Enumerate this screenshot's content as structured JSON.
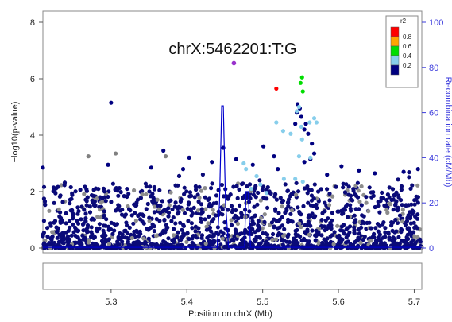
{
  "chart_data": {
    "type": "scatter",
    "title": "chrX:5462201:T:G",
    "xlabel": "Position on chrX (Mb)",
    "ylabel_left": "−log10(p-value)",
    "ylabel_right": "Recombination rate (cM/Mb)",
    "xlim": [
      5.21,
      5.71
    ],
    "ylim_left": [
      0,
      8
    ],
    "ylim_right": [
      0,
      100
    ],
    "x_ticks": [
      "5.3",
      "5.4",
      "5.5",
      "5.6",
      "5.7"
    ],
    "x_tick_values": [
      5.3,
      5.4,
      5.5,
      5.6,
      5.7
    ],
    "y_left_ticks": [
      "0",
      "2",
      "4",
      "6",
      "8"
    ],
    "y_left_tick_values": [
      0,
      2,
      4,
      6,
      8
    ],
    "y_right_ticks": [
      "0",
      "20",
      "40",
      "60",
      "80",
      "100"
    ],
    "y_right_tick_values": [
      0,
      20,
      40,
      60,
      80,
      100
    ],
    "legend": {
      "title": "r2",
      "entries": [
        {
          "label": "0.8",
          "color": "#ff0000"
        },
        {
          "label": "0.6",
          "color": "#ffa500"
        },
        {
          "label": "0.4",
          "color": "#00dd00"
        },
        {
          "label": "0.2",
          "color": "#87ceeb"
        },
        {
          "label": "",
          "color": "#000080"
        }
      ],
      "placement": "top-right"
    },
    "lead_snp": {
      "name": "chrX:5462201:T:G",
      "x": 5.462,
      "y": 6.55,
      "color": "#9932cc"
    },
    "highlighted_points": [
      {
        "x": 5.518,
        "y": 5.65,
        "r2_color": "#ff0000"
      },
      {
        "x": 5.552,
        "y": 6.05,
        "r2_color": "#00dd00"
      },
      {
        "x": 5.55,
        "y": 5.85,
        "r2_color": "#00dd00"
      },
      {
        "x": 5.553,
        "y": 5.55,
        "r2_color": "#00dd00"
      },
      {
        "x": 5.548,
        "y": 5.0,
        "r2_color": "#87ceeb"
      },
      {
        "x": 5.545,
        "y": 4.85,
        "r2_color": "#87ceeb"
      },
      {
        "x": 5.568,
        "y": 4.6,
        "r2_color": "#87ceeb"
      },
      {
        "x": 5.571,
        "y": 4.45,
        "r2_color": "#87ceeb"
      },
      {
        "x": 5.518,
        "y": 4.45,
        "r2_color": "#87ceeb"
      },
      {
        "x": 5.527,
        "y": 4.15,
        "r2_color": "#87ceeb"
      },
      {
        "x": 5.537,
        "y": 4.05,
        "r2_color": "#87ceeb"
      },
      {
        "x": 5.551,
        "y": 4.3,
        "r2_color": "#87ceeb"
      },
      {
        "x": 5.562,
        "y": 4.45,
        "r2_color": "#87ceeb"
      },
      {
        "x": 5.552,
        "y": 3.85,
        "r2_color": "#87ceeb"
      },
      {
        "x": 5.548,
        "y": 3.25,
        "r2_color": "#87ceeb"
      },
      {
        "x": 5.563,
        "y": 3.2,
        "r2_color": "#87ceeb"
      },
      {
        "x": 5.543,
        "y": 2.45,
        "r2_color": "#87ceeb"
      },
      {
        "x": 5.553,
        "y": 2.35,
        "r2_color": "#87ceeb"
      },
      {
        "x": 5.528,
        "y": 2.45,
        "r2_color": "#87ceeb"
      },
      {
        "x": 5.497,
        "y": 2.25,
        "r2_color": "#87ceeb"
      },
      {
        "x": 5.475,
        "y": 3.0,
        "r2_color": "#87ceeb"
      },
      {
        "x": 5.478,
        "y": 2.8,
        "r2_color": "#87ceeb"
      },
      {
        "x": 5.492,
        "y": 2.55,
        "r2_color": "#87ceeb"
      },
      {
        "x": 5.485,
        "y": 2.1,
        "r2_color": "#87ceeb"
      },
      {
        "x": 5.505,
        "y": 1.95,
        "r2_color": "#87ceeb"
      }
    ],
    "notable_background_points": [
      {
        "x": 5.3,
        "y": 5.15,
        "r2_color": "#000080"
      },
      {
        "x": 5.546,
        "y": 5.1,
        "r2_color": "#000080"
      },
      {
        "x": 5.549,
        "y": 4.95,
        "r2_color": "#000080"
      },
      {
        "x": 5.545,
        "y": 4.8,
        "r2_color": "#000080"
      },
      {
        "x": 5.551,
        "y": 4.65,
        "r2_color": "#000080"
      },
      {
        "x": 5.543,
        "y": 4.4,
        "r2_color": "#000080"
      },
      {
        "x": 5.557,
        "y": 4.4,
        "r2_color": "#000080"
      },
      {
        "x": 5.555,
        "y": 4.2,
        "r2_color": "#000080"
      },
      {
        "x": 5.56,
        "y": 4.05,
        "r2_color": "#000080"
      },
      {
        "x": 5.565,
        "y": 3.7,
        "r2_color": "#000080"
      },
      {
        "x": 5.568,
        "y": 3.35,
        "r2_color": "#000080"
      },
      {
        "x": 5.563,
        "y": 3.15,
        "r2_color": "#000080"
      },
      {
        "x": 5.555,
        "y": 3.05,
        "r2_color": "#000080"
      },
      {
        "x": 5.515,
        "y": 3.25,
        "r2_color": "#000080"
      },
      {
        "x": 5.501,
        "y": 3.6,
        "r2_color": "#000080"
      },
      {
        "x": 5.487,
        "y": 2.95,
        "r2_color": "#000080"
      },
      {
        "x": 5.465,
        "y": 3.15,
        "r2_color": "#000080"
      },
      {
        "x": 5.448,
        "y": 3.55,
        "r2_color": "#000080"
      },
      {
        "x": 5.433,
        "y": 3.05,
        "r2_color": "#000080"
      },
      {
        "x": 5.369,
        "y": 3.45,
        "r2_color": "#000080"
      },
      {
        "x": 5.403,
        "y": 3.2,
        "r2_color": "#000080"
      },
      {
        "x": 5.395,
        "y": 2.8,
        "r2_color": "#000080"
      },
      {
        "x": 5.353,
        "y": 2.85,
        "r2_color": "#000080"
      },
      {
        "x": 5.296,
        "y": 2.95,
        "r2_color": "#000080"
      },
      {
        "x": 5.27,
        "y": 3.25,
        "r2_color": "#808080"
      },
      {
        "x": 5.306,
        "y": 3.35,
        "r2_color": "#808080"
      },
      {
        "x": 5.372,
        "y": 3.25,
        "r2_color": "#808080"
      },
      {
        "x": 5.21,
        "y": 2.85,
        "r2_color": "#000080"
      },
      {
        "x": 5.604,
        "y": 2.9,
        "r2_color": "#000080"
      },
      {
        "x": 5.705,
        "y": 2.8,
        "r2_color": "#000080"
      },
      {
        "x": 5.686,
        "y": 2.7,
        "r2_color": "#000080"
      },
      {
        "x": 5.627,
        "y": 2.75,
        "r2_color": "#000080"
      },
      {
        "x": 5.52,
        "y": 2.8,
        "r2_color": "#000080"
      },
      {
        "x": 5.648,
        "y": 2.65,
        "r2_color": "#000080"
      },
      {
        "x": 5.585,
        "y": 2.6,
        "r2_color": "#000080"
      }
    ],
    "recombination_rate": {
      "x": [
        5.21,
        5.44,
        5.443,
        5.446,
        5.448,
        5.451,
        5.455,
        5.476,
        5.478,
        5.481,
        5.484,
        5.71
      ],
      "y": [
        0.3,
        0.3,
        20,
        63,
        63,
        20,
        0.3,
        0.3,
        25,
        25,
        0.3,
        0.3
      ],
      "color": "#0000cc"
    },
    "grid": false
  }
}
